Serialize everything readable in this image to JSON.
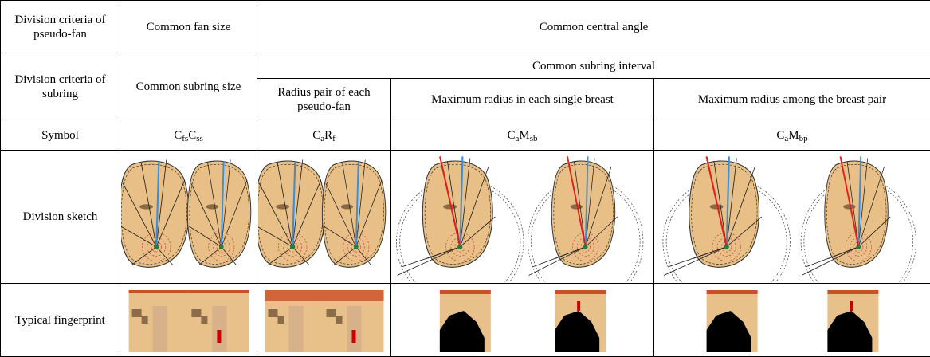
{
  "pseudo_fan": {
    "label": "Division criteria of pseudo-fan",
    "fan_size": "Common fan size",
    "central_angle": "Common central angle"
  },
  "subring": {
    "label": "Division criteria of subring",
    "size": "Common subring size",
    "interval": "Common subring interval",
    "methods": [
      "Radius pair of each pseudo-fan",
      "Maximum radius in each single breast",
      "Maximum radius among the breast pair"
    ]
  },
  "symbol": {
    "label": "Symbol",
    "values": [
      [
        {
          "base": "C",
          "sub": "fs"
        },
        {
          "base": "C",
          "sub": "ss"
        }
      ],
      [
        {
          "base": "C",
          "sub": "a"
        },
        {
          "base": "R",
          "sub": "f"
        }
      ],
      [
        {
          "base": "C",
          "sub": "a"
        },
        {
          "base": "M",
          "sub": "sb"
        }
      ],
      [
        {
          "base": "C",
          "sub": "a"
        },
        {
          "base": "M",
          "sub": "bp"
        }
      ]
    ]
  },
  "sketch": {
    "label": "Division sketch"
  },
  "fingerprint": {
    "label": "Typical fingerprint"
  }
}
